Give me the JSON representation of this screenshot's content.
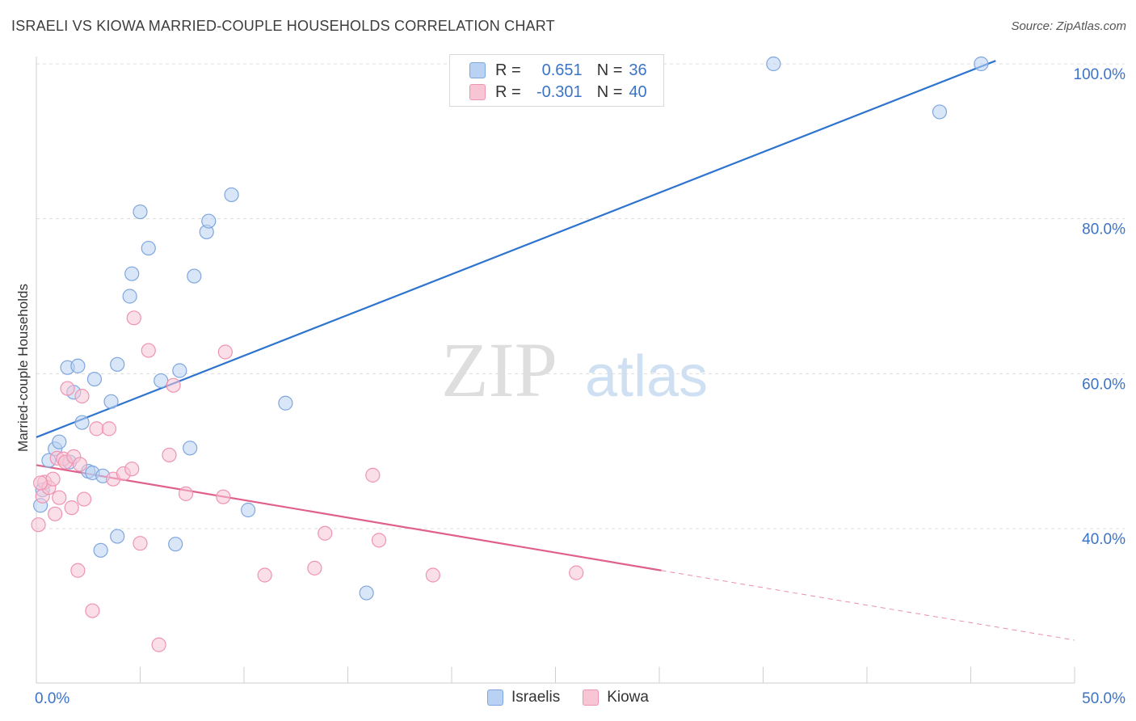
{
  "title": "ISRAELI VS KIOWA MARRIED-COUPLE HOUSEHOLDS CORRELATION CHART",
  "source": "Source: ZipAtlas.com",
  "watermark": {
    "zip": "ZIP",
    "atlas": "atlas"
  },
  "legend": {
    "rows": [
      {
        "r_label": "R =",
        "r_value": "0.651",
        "n_label": "N =",
        "n_value": "36"
      },
      {
        "r_label": "R =",
        "r_value": "-0.301",
        "n_label": "N =",
        "n_value": "40"
      }
    ]
  },
  "bottom_legend": {
    "series1": "Israelis",
    "series2": "Kiowa"
  },
  "colors": {
    "blue_fill": "#b9d2f3",
    "blue_stroke": "#7ea6de",
    "blue_line": "#2e74cf",
    "pink_fill": "#f8c5d5",
    "pink_stroke": "#ee93b0",
    "pink_line": "#e0608c",
    "grid": "#dcdcdc",
    "tick_label": "#3b73c8"
  },
  "chart_data": {
    "type": "scatter",
    "title": "ISRAELI VS KIOWA MARRIED-COUPLE HOUSEHOLDS CORRELATION CHART",
    "xlabel": "",
    "ylabel": "Married-couple Households",
    "xlim": [
      0,
      50
    ],
    "ylim": [
      22,
      102
    ],
    "x_tick_labels": [
      "0.0%",
      "50.0%"
    ],
    "y_ticks": [
      40,
      60,
      80,
      100
    ],
    "y_tick_labels": [
      "40.0%",
      "60.0%",
      "80.0%",
      "100.0%"
    ],
    "series": [
      {
        "name": "Israelis",
        "r": 0.651,
        "n": 36,
        "trend": {
          "x0": 0,
          "y0": 51.8,
          "x1": 46.2,
          "y1": 100.4
        },
        "points": [
          [
            0.2,
            43.0
          ],
          [
            0.3,
            45.0
          ],
          [
            0.6,
            48.8
          ],
          [
            0.9,
            50.3
          ],
          [
            1.1,
            51.2
          ],
          [
            1.6,
            48.6
          ],
          [
            1.5,
            60.8
          ],
          [
            2.0,
            61.0
          ],
          [
            1.8,
            57.6
          ],
          [
            2.2,
            53.7
          ],
          [
            2.8,
            59.3
          ],
          [
            2.5,
            47.4
          ],
          [
            2.7,
            47.2
          ],
          [
            3.2,
            46.8
          ],
          [
            3.6,
            56.4
          ],
          [
            3.9,
            39.0
          ],
          [
            3.1,
            37.2
          ],
          [
            3.9,
            61.2
          ],
          [
            4.5,
            70.0
          ],
          [
            4.6,
            72.9
          ],
          [
            5.0,
            80.9
          ],
          [
            5.4,
            76.2
          ],
          [
            6.0,
            59.1
          ],
          [
            6.7,
            38.0
          ],
          [
            6.9,
            60.4
          ],
          [
            7.4,
            50.4
          ],
          [
            7.6,
            72.6
          ],
          [
            8.2,
            78.3
          ],
          [
            8.3,
            79.7
          ],
          [
            9.4,
            83.1
          ],
          [
            10.2,
            42.4
          ],
          [
            12.0,
            56.2
          ],
          [
            15.9,
            31.7
          ],
          [
            35.5,
            100.0
          ],
          [
            43.5,
            93.8
          ],
          [
            45.5,
            100.0
          ]
        ]
      },
      {
        "name": "Kiowa",
        "r": -0.301,
        "n": 40,
        "trend": {
          "x0": 0,
          "y0": 48.2,
          "x1": 30.1,
          "y1": 34.6,
          "dash_x1": 50,
          "dash_y1": 25.6
        },
        "points": [
          [
            0.1,
            40.5
          ],
          [
            0.3,
            44.2
          ],
          [
            0.4,
            46.0
          ],
          [
            0.6,
            45.3
          ],
          [
            0.8,
            46.4
          ],
          [
            0.9,
            41.9
          ],
          [
            1.0,
            49.1
          ],
          [
            1.1,
            44.0
          ],
          [
            1.3,
            49.0
          ],
          [
            1.4,
            48.6
          ],
          [
            1.5,
            58.1
          ],
          [
            1.7,
            42.7
          ],
          [
            1.8,
            49.3
          ],
          [
            2.0,
            34.6
          ],
          [
            2.1,
            48.3
          ],
          [
            2.2,
            57.1
          ],
          [
            2.3,
            43.8
          ],
          [
            2.7,
            29.4
          ],
          [
            2.9,
            52.9
          ],
          [
            3.5,
            52.9
          ],
          [
            3.7,
            46.4
          ],
          [
            4.2,
            47.1
          ],
          [
            4.6,
            47.7
          ],
          [
            4.7,
            67.2
          ],
          [
            5.0,
            38.1
          ],
          [
            5.4,
            63.0
          ],
          [
            5.9,
            25.0
          ],
          [
            6.4,
            49.5
          ],
          [
            6.6,
            58.5
          ],
          [
            7.2,
            44.5
          ],
          [
            9.0,
            44.1
          ],
          [
            9.1,
            62.8
          ],
          [
            11.0,
            34.0
          ],
          [
            13.4,
            34.9
          ],
          [
            13.9,
            39.4
          ],
          [
            16.2,
            46.9
          ],
          [
            16.5,
            38.5
          ],
          [
            19.1,
            34.0
          ],
          [
            26.0,
            34.3
          ],
          [
            0.2,
            45.9
          ]
        ]
      }
    ]
  }
}
